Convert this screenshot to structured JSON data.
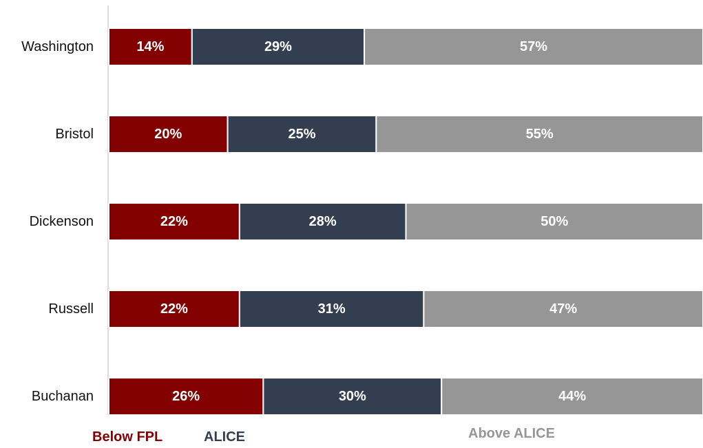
{
  "chart_data": {
    "type": "bar",
    "orientation": "horizontal",
    "stacked": true,
    "categories": [
      "Washington",
      "Bristol",
      "Dickenson",
      "Russell",
      "Buchanan"
    ],
    "series": [
      {
        "name": "Below FPL",
        "color": "#820000",
        "values": [
          14,
          20,
          22,
          22,
          26
        ]
      },
      {
        "name": "ALICE",
        "color": "#333f50",
        "values": [
          29,
          25,
          28,
          31,
          30
        ]
      },
      {
        "name": "Above ALICE",
        "color": "#969696",
        "values": [
          57,
          55,
          50,
          47,
          44
        ]
      }
    ],
    "value_suffix": "%",
    "xlim": [
      0,
      100
    ],
    "grid": false,
    "legend_position": "bottom"
  }
}
